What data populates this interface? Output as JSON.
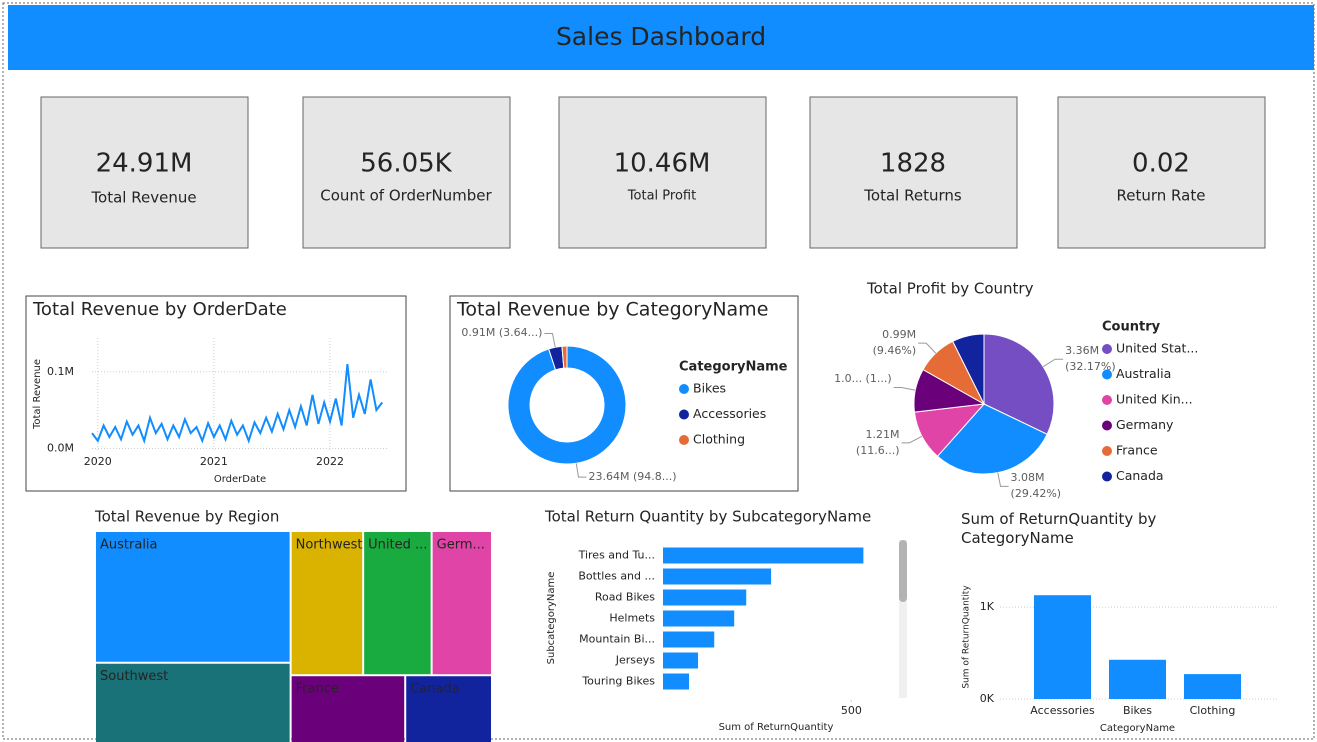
{
  "header": {
    "title": "Sales Dashboard"
  },
  "cards": [
    {
      "value": "24.91M",
      "label": "Total Revenue"
    },
    {
      "value": "56.05K",
      "label": "Count of OrderNumber"
    },
    {
      "value": "10.46M",
      "label": "Total Profit"
    },
    {
      "value": "1828",
      "label": "Total Returns"
    },
    {
      "value": "0.02",
      "label": "Return Rate"
    }
  ],
  "chart_data": [
    {
      "type": "line",
      "title": "Total Revenue by OrderDate",
      "x_label": "OrderDate",
      "y_label": "Total Revenue",
      "color": "#118dff",
      "grid": true,
      "x": [
        2019.95,
        2020,
        2020.05,
        2020.1,
        2020.15,
        2020.2,
        2020.25,
        2020.3,
        2020.35,
        2020.4,
        2020.45,
        2020.5,
        2020.55,
        2020.6,
        2020.65,
        2020.7,
        2020.75,
        2020.8,
        2020.85,
        2020.9,
        2020.95,
        2021,
        2021.05,
        2021.1,
        2021.15,
        2021.2,
        2021.25,
        2021.3,
        2021.35,
        2021.4,
        2021.45,
        2021.5,
        2021.55,
        2021.6,
        2021.65,
        2021.7,
        2021.75,
        2021.8,
        2021.85,
        2021.9,
        2021.95,
        2022,
        2022.05,
        2022.1,
        2022.15,
        2022.2,
        2022.25,
        2022.3,
        2022.35,
        2022.4,
        2022.45
      ],
      "values": [
        0.02,
        0.01,
        0.03,
        0.015,
        0.028,
        0.012,
        0.035,
        0.018,
        0.03,
        0.01,
        0.04,
        0.02,
        0.032,
        0.012,
        0.03,
        0.015,
        0.038,
        0.02,
        0.028,
        0.01,
        0.033,
        0.015,
        0.03,
        0.012,
        0.036,
        0.018,
        0.03,
        0.01,
        0.034,
        0.02,
        0.04,
        0.022,
        0.045,
        0.025,
        0.05,
        0.028,
        0.055,
        0.03,
        0.07,
        0.032,
        0.06,
        0.035,
        0.065,
        0.03,
        0.11,
        0.04,
        0.07,
        0.045,
        0.09,
        0.05,
        0.06
      ],
      "xlim": [
        2019.95,
        2022.5
      ],
      "xticks": [
        2020,
        2021,
        2022
      ],
      "ylim": [
        -0.002,
        0.144
      ],
      "yticks": [
        {
          "value": 0,
          "label": "0.0M"
        },
        {
          "value": 0.1,
          "label": "0.1M"
        }
      ]
    },
    {
      "type": "pie",
      "donut": true,
      "title": "Total Revenue by CategoryName",
      "legend_title": "CategoryName",
      "categories": [
        "Bikes",
        "Accessories",
        "Clothing"
      ],
      "values": [
        23.64,
        0.91,
        0.34
      ],
      "value_labels": [
        "23.64M (94.8...)",
        "0.91M (3.64...)",
        null
      ],
      "colors": [
        "#118dff",
        "#12239e",
        "#e66c37"
      ]
    },
    {
      "type": "pie",
      "title": "Total Profit by Country",
      "legend_title": "Country",
      "categories": [
        "United Stat...",
        "Australia",
        "United Kin...",
        "Germany",
        "France",
        "Canada"
      ],
      "values": [
        3.36,
        3.08,
        1.21,
        1.05,
        0.99,
        0.77
      ],
      "value_labels": [
        "3.36M (32.17%)",
        "3.08M (29.42%)",
        "1.21M (11.6...)",
        "1.0... (1...)",
        "0.99M (9.46%)",
        null
      ],
      "colors": [
        "#744ec2",
        "#118dff",
        "#e044a7",
        "#6b007b",
        "#e66c37",
        "#12239e"
      ]
    },
    {
      "type": "treemap",
      "title": "Total Revenue by Region",
      "categories": [
        "Australia",
        "Southwest",
        "Northwest",
        "United ...",
        "Germ...",
        "France",
        "Canada"
      ],
      "values": [
        7.49,
        4.79,
        3.04,
        2.87,
        2.53,
        2.39,
        1.81
      ],
      "colors": [
        "#118dff",
        "#197278",
        "#d9b300",
        "#1aab40",
        "#e044a7",
        "#6b007b",
        "#12239e"
      ]
    },
    {
      "type": "bar",
      "orientation": "horizontal",
      "title": "Total Return Quantity by SubcategoryName",
      "x_label": "Sum of ReturnQuantity",
      "y_label": "SubcategoryName",
      "color": "#118dff",
      "categories": [
        "Tires and Tu...",
        "Bottles and ...",
        "Road Bikes",
        "Helmets",
        "Mountain Bi...",
        "Jerseys",
        "Touring Bikes"
      ],
      "values": [
        532,
        287,
        221,
        189,
        136,
        93,
        69
      ],
      "xlim": [
        0,
        600
      ],
      "xticks": [
        500
      ]
    },
    {
      "type": "bar",
      "title": "Sum of ReturnQuantity by CategoryName",
      "x_label": "CategoryName",
      "y_label": "Sum of ReturnQuantity",
      "color": "#118dff",
      "grid": true,
      "categories": [
        "Accessories",
        "Bikes",
        "Clothing"
      ],
      "values": [
        1130,
        427,
        271
      ],
      "ylim": [
        0,
        1350
      ],
      "yticks": [
        {
          "value": 0,
          "label": "0K"
        },
        {
          "value": 1000,
          "label": "1K"
        }
      ]
    }
  ]
}
